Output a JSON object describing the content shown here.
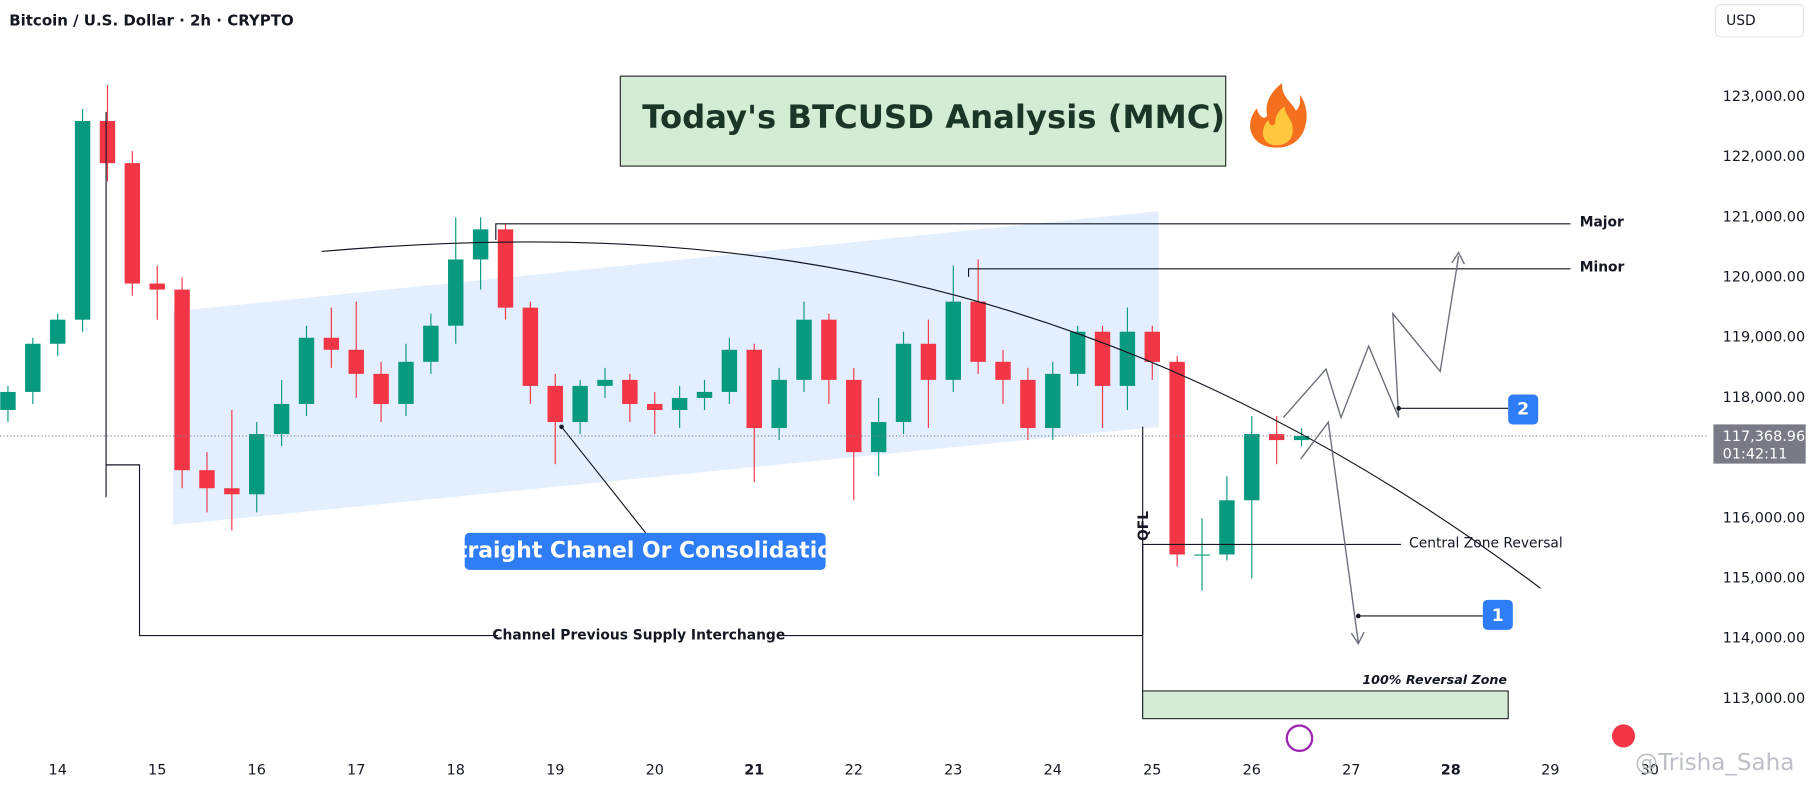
{
  "chart_data": {
    "type": "candlestick",
    "title": "Bitcoin / U.S. Dollar · 2h · CRYPTO",
    "currency": "USD",
    "x": [
      13.5,
      13.75,
      14,
      14.25,
      14.5,
      14.75,
      15,
      15.25,
      15.5,
      15.75,
      16,
      16.25,
      16.5,
      16.75,
      17,
      17.25,
      17.5,
      17.75,
      18,
      18.25,
      18.5,
      18.75,
      19,
      19.25,
      19.5,
      19.75,
      20,
      20.25,
      20.5,
      20.75,
      21,
      21.25,
      21.5,
      21.75,
      22,
      22.25,
      22.5,
      22.75,
      23,
      23.25,
      23.5,
      23.75,
      24,
      24.25,
      24.5,
      24.75,
      25,
      25.25,
      25.5,
      25.75,
      26,
      26.25,
      26.5
    ],
    "series": [
      {
        "name": "BTCUSD",
        "up_color": "#089981",
        "down_color": "#f23645",
        "open": [
          117800,
          118100,
          118900,
          119300,
          122600,
          121900,
          119900,
          119800,
          116800,
          116500,
          116400,
          117400,
          117900,
          119000,
          118800,
          118400,
          117900,
          118600,
          119200,
          120300,
          120800,
          119500,
          118200,
          117600,
          118200,
          118300,
          117900,
          117800,
          118000,
          118100,
          118800,
          117500,
          118300,
          119300,
          118300,
          117100,
          117600,
          118900,
          118300,
          119600,
          118600,
          118300,
          117500,
          118400,
          119100,
          118200,
          119100,
          118600,
          115400,
          115400,
          116300,
          117400,
          117300
        ],
        "high": [
          118200,
          119000,
          119400,
          122800,
          123200,
          122100,
          120200,
          120000,
          117100,
          117800,
          117600,
          118300,
          119200,
          119500,
          119600,
          118600,
          118900,
          119400,
          121000,
          121000,
          120900,
          119600,
          118400,
          118300,
          118500,
          118400,
          118100,
          118200,
          118300,
          119000,
          118900,
          118500,
          119600,
          119400,
          118500,
          118000,
          119100,
          119300,
          120200,
          120300,
          118800,
          118500,
          118600,
          119200,
          119200,
          119500,
          119200,
          118700,
          116000,
          116700,
          117700,
          117700,
          117500
        ],
        "low": [
          117600,
          117900,
          118700,
          119100,
          121600,
          119700,
          119300,
          116500,
          116100,
          115800,
          116100,
          117200,
          117700,
          118500,
          118000,
          117600,
          117700,
          118400,
          118900,
          119800,
          119300,
          117900,
          116900,
          117400,
          118000,
          117600,
          117400,
          117500,
          117800,
          117900,
          116600,
          117300,
          118100,
          117900,
          116300,
          116700,
          117400,
          117500,
          118100,
          118400,
          117900,
          117300,
          117300,
          118200,
          117500,
          117800,
          118300,
          115200,
          114800,
          115300,
          115000,
          116900,
          117200
        ],
        "close": [
          118100,
          118900,
          119300,
          122600,
          121900,
          119900,
          119800,
          116800,
          116500,
          116400,
          117400,
          117900,
          119000,
          118800,
          118400,
          117900,
          118600,
          119200,
          120300,
          120800,
          119500,
          118200,
          117600,
          118200,
          118300,
          117900,
          117800,
          118000,
          118100,
          118800,
          117500,
          118300,
          119300,
          118300,
          117100,
          117600,
          118900,
          118300,
          119600,
          118600,
          118300,
          117500,
          118400,
          119100,
          118200,
          119100,
          118600,
          115400,
          115400,
          116300,
          117400,
          117300,
          117368.96
        ]
      }
    ],
    "xlim": [
      13.42,
      30.57
    ],
    "xticks": [
      14,
      15,
      16,
      17,
      18,
      19,
      20,
      21,
      22,
      23,
      24,
      25,
      26,
      27,
      28,
      29,
      30
    ],
    "emphasized_xticks": [
      21,
      28
    ],
    "ylim": [
      112060,
      124610
    ],
    "yticks": [
      {
        "value": 113000,
        "label": "113,000.00"
      },
      {
        "value": 114000,
        "label": "114,000.00"
      },
      {
        "value": 115000,
        "label": "115,000.00"
      },
      {
        "value": 116000,
        "label": "116,000.00"
      },
      {
        "value": 117000,
        "label": "117,000.00"
      },
      {
        "value": 118000,
        "label": "118,000.00"
      },
      {
        "value": 119000,
        "label": "119,000.00"
      },
      {
        "value": 120000,
        "label": "120,000.00"
      },
      {
        "value": 121000,
        "label": "121,000.00"
      },
      {
        "value": 122000,
        "label": "122,000.00"
      },
      {
        "value": 123000,
        "label": "123,000.00"
      }
    ],
    "grid": false,
    "current_price": {
      "value": 117368.96,
      "label": "117,368.96"
    },
    "countdown": "01:42:11",
    "annotations": {
      "headline": "Today's BTCUSD Analysis (MMC)",
      "major": "Major",
      "minor": "Minor",
      "channel": "Straight Chanel Or Consolidation",
      "qfl": "QFL",
      "central_zone": "Central Zone Reversal",
      "supply_interchange": "Channel Previous Supply Interchange",
      "reversal_zone": "100% Reversal Zone",
      "target_1": "1",
      "target_2": "2",
      "watermark": "@Trisha_Saha"
    }
  }
}
